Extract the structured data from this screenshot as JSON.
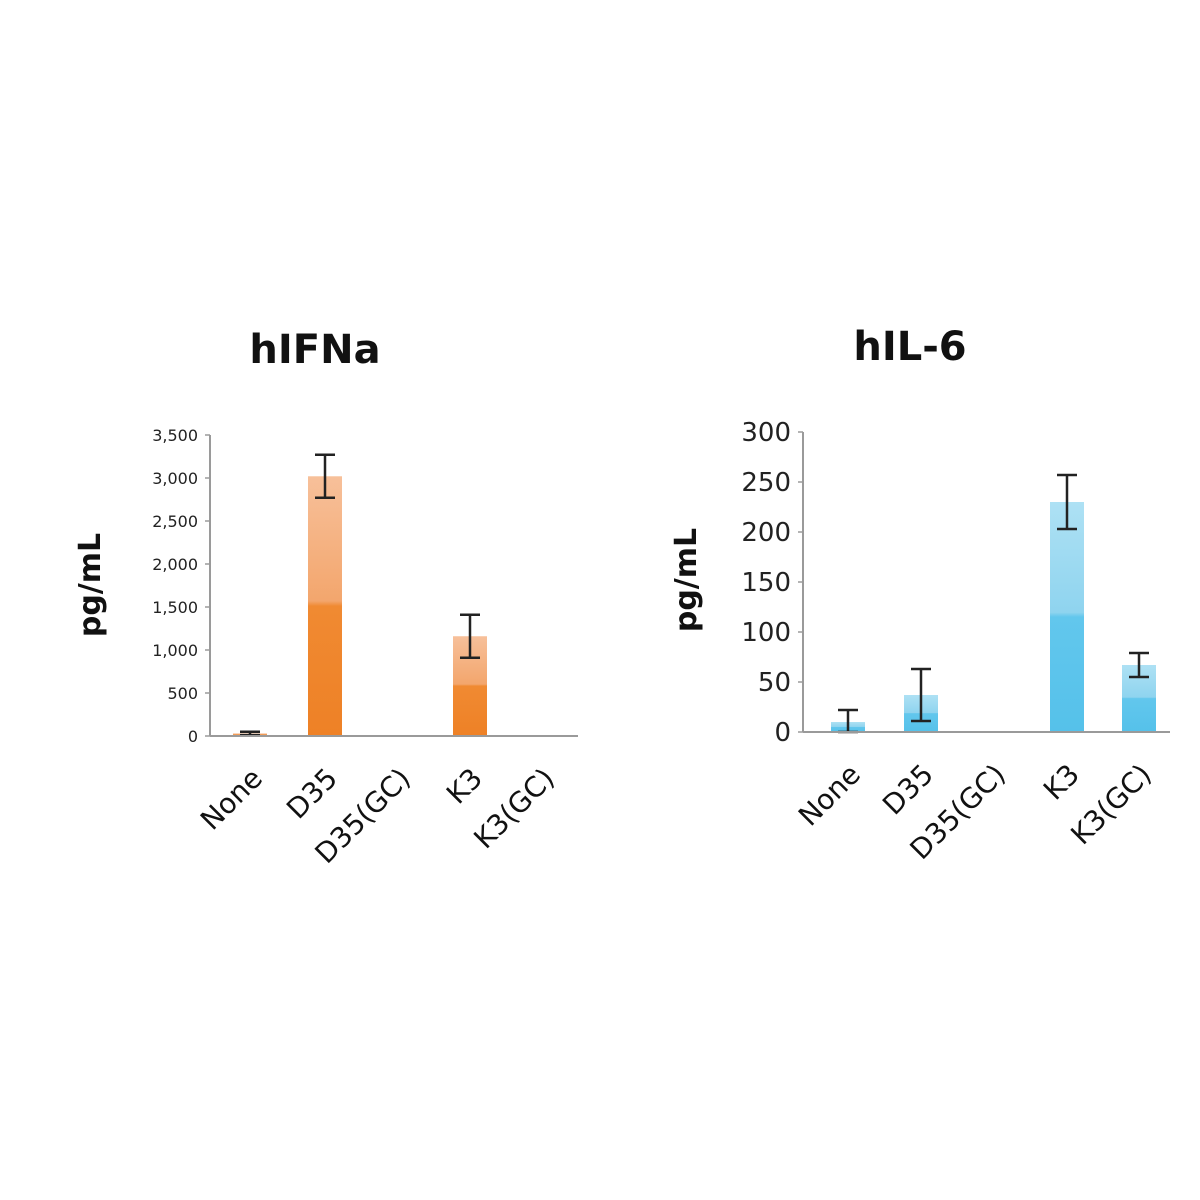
{
  "chart_data": [
    {
      "type": "bar",
      "title": "hIFNa",
      "ylabel": "pg/mL",
      "xlabel": "",
      "ylim": [
        0,
        3500
      ],
      "yticks": [
        0,
        500,
        1000,
        1500,
        2000,
        2500,
        3000,
        3500
      ],
      "ytick_labels": [
        "0",
        "500",
        "1,000",
        "1,500",
        "2,000",
        "2,500",
        "3,000",
        "3,500"
      ],
      "categories": [
        "None",
        "D35",
        "D35(GC)",
        "K3",
        "K3(GC)"
      ],
      "values": [
        30,
        3020,
        0,
        1160,
        0
      ],
      "errors": [
        20,
        250,
        0,
        250,
        0
      ],
      "color": "#f08a32",
      "color_light": "#f8c7a0",
      "grid": false,
      "legend": "none"
    },
    {
      "type": "bar",
      "title": "hIL-6",
      "ylabel": "pg/mL",
      "xlabel": "",
      "ylim": [
        0,
        300
      ],
      "yticks": [
        0,
        50,
        100,
        150,
        200,
        250,
        300
      ],
      "ytick_labels": [
        "0",
        "50",
        "100",
        "150",
        "200",
        "250",
        "300"
      ],
      "categories": [
        "None",
        "D35",
        "D35(GC)",
        "K3",
        "K3(GC)"
      ],
      "values": [
        10,
        37,
        1,
        230,
        67
      ],
      "errors": [
        12,
        26,
        0,
        27,
        12
      ],
      "color": "#55c4ec",
      "color_light": "#aee1f4",
      "grid": false,
      "legend": "none"
    }
  ]
}
